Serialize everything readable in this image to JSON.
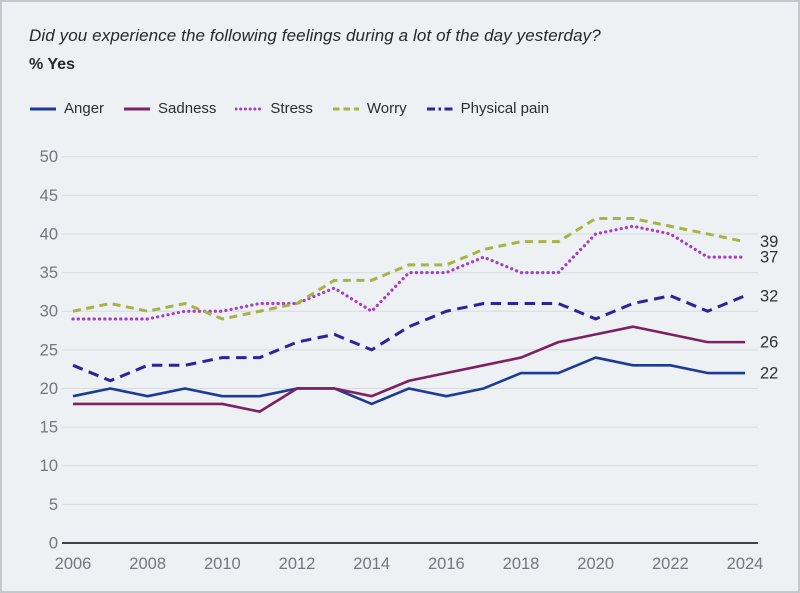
{
  "header": {
    "title": "Did you experience the following feelings during a lot of the day yesterday?",
    "subtitle": "% Yes"
  },
  "colors": {
    "background": "#edf1f4",
    "grid": "#d7dbdf",
    "axis": "#3d4348",
    "tick_text": "#73787d",
    "end_label_text": "#2f3336",
    "title_text": "#26292c",
    "legend_text": "#2a2d30"
  },
  "chart_data": {
    "type": "line",
    "title": "Did you experience the following feelings during a lot of the day yesterday?",
    "subtitle": "% Yes",
    "x": [
      2006,
      2007,
      2008,
      2009,
      2010,
      2011,
      2012,
      2013,
      2014,
      2015,
      2016,
      2017,
      2018,
      2019,
      2020,
      2021,
      2022,
      2023,
      2024
    ],
    "xticks": [
      2006,
      2008,
      2010,
      2012,
      2014,
      2016,
      2018,
      2020,
      2022,
      2024
    ],
    "yticks": [
      0,
      5,
      10,
      15,
      20,
      25,
      30,
      35,
      40,
      45,
      50
    ],
    "ylim": [
      0,
      50
    ],
    "grid": "horizontal",
    "legend_position": "top-left",
    "series": [
      {
        "name": "Anger",
        "color": "#1d3a96",
        "style": "solid",
        "end_label": "22",
        "values": [
          19,
          20,
          19,
          20,
          19,
          19,
          20,
          20,
          18,
          20,
          19,
          20,
          22,
          22,
          24,
          23,
          23,
          22,
          22
        ]
      },
      {
        "name": "Sadness",
        "color": "#7d2163",
        "style": "solid",
        "end_label": "26",
        "values": [
          18,
          18,
          18,
          18,
          18,
          17,
          20,
          20,
          19,
          21,
          22,
          23,
          24,
          26,
          27,
          28,
          27,
          26,
          26
        ]
      },
      {
        "name": "Stress",
        "color": "#a53dc6",
        "style": "dotted",
        "end_label": "37",
        "values": [
          29,
          29,
          29,
          30,
          30,
          31,
          31,
          33,
          30,
          35,
          35,
          37,
          35,
          35,
          40,
          41,
          40,
          37,
          37
        ]
      },
      {
        "name": "Worry",
        "color": "#a7b345",
        "style": "dashed",
        "end_label": "39",
        "values": [
          30,
          31,
          30,
          31,
          29,
          30,
          31,
          34,
          34,
          36,
          36,
          38,
          39,
          39,
          42,
          42,
          41,
          40,
          39
        ]
      },
      {
        "name": "Physical pain",
        "color": "#2f209d",
        "style": "long-dashed",
        "end_label": "32",
        "values": [
          23,
          21,
          23,
          23,
          24,
          24,
          26,
          27,
          25,
          28,
          30,
          31,
          31,
          31,
          29,
          31,
          32,
          30,
          32
        ]
      }
    ]
  }
}
